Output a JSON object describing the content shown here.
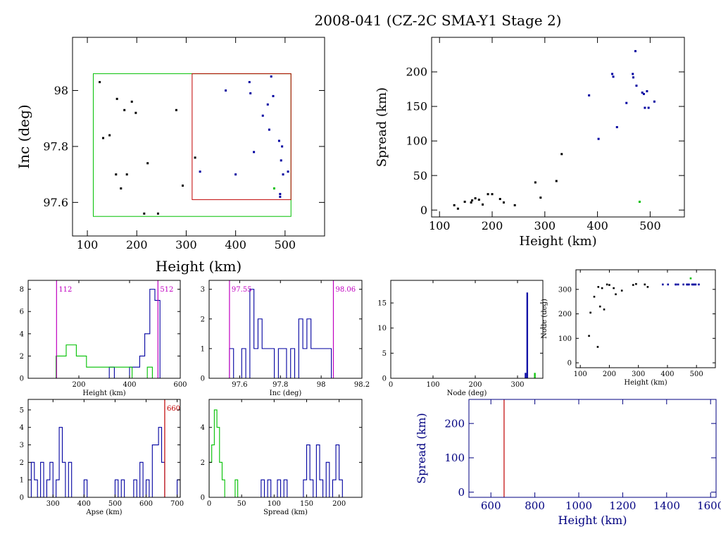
{
  "title": "2008-041 (CZ-2C SMA-Y1 Stage 2)",
  "colors": {
    "axis": "#000000",
    "blue": "#0000a0",
    "green": "#00c000",
    "red": "#c00000",
    "magenta": "#c000c0",
    "darkblue": "#000080"
  },
  "chart_data": [
    {
      "id": "inc_vs_height",
      "type": "scatter",
      "xlabel": "Height (km)",
      "ylabel": "Inc (deg)",
      "xlim": [
        70,
        580
      ],
      "ylim": [
        97.48,
        98.19
      ],
      "xticks": [
        100,
        200,
        300,
        400,
        500
      ],
      "yticks": [
        97.6,
        97.8,
        98.0
      ],
      "ytick_labels": [
        "97.6",
        "97.8",
        "98"
      ],
      "boxes": [
        {
          "color": "green",
          "x": [
            112,
            512
          ],
          "y": [
            97.55,
            98.06
          ]
        },
        {
          "color": "red",
          "x": [
            312,
            512
          ],
          "y": [
            97.61,
            98.06
          ]
        }
      ],
      "series": [
        {
          "color": "black",
          "points": [
            [
              125,
              98.03
            ],
            [
              132,
              97.83
            ],
            [
              145,
              97.84
            ],
            [
              158,
              97.7
            ],
            [
              160,
              97.97
            ],
            [
              168,
              97.65
            ],
            [
              175,
              97.93
            ],
            [
              180,
              97.7
            ],
            [
              190,
              97.96
            ],
            [
              198,
              97.92
            ],
            [
              215,
              97.56
            ],
            [
              222,
              97.74
            ],
            [
              243,
              97.56
            ],
            [
              280,
              97.93
            ],
            [
              293,
              97.66
            ],
            [
              318,
              97.76
            ]
          ]
        },
        {
          "color": "blue",
          "points": [
            [
              328,
              97.71
            ],
            [
              380,
              98.0
            ],
            [
              400,
              97.7
            ],
            [
              428,
              98.03
            ],
            [
              430,
              97.99
            ],
            [
              437,
              97.78
            ],
            [
              455,
              97.91
            ],
            [
              465,
              97.95
            ],
            [
              468,
              97.86
            ],
            [
              472,
              98.05
            ],
            [
              476,
              97.98
            ],
            [
              488,
              97.82
            ],
            [
              492,
              97.75
            ],
            [
              494,
              97.8
            ],
            [
              496,
              97.7
            ],
            [
              490,
              97.62
            ],
            [
              490,
              97.63
            ],
            [
              506,
              97.71
            ]
          ]
        },
        {
          "color": "green",
          "points": [
            [
              478,
              97.65
            ]
          ]
        }
      ]
    },
    {
      "id": "spread_vs_height",
      "type": "scatter",
      "xlabel": "Height (km)",
      "ylabel": "Spread (km)",
      "xlim": [
        85,
        565
      ],
      "ylim": [
        -10,
        250
      ],
      "xticks": [
        100,
        200,
        300,
        400,
        500
      ],
      "yticks": [
        0,
        50,
        100,
        150,
        200
      ],
      "series": [
        {
          "color": "black",
          "points": [
            [
              128,
              7
            ],
            [
              135,
              2
            ],
            [
              148,
              12
            ],
            [
              160,
              11
            ],
            [
              162,
              14
            ],
            [
              168,
              17
            ],
            [
              175,
              15
            ],
            [
              182,
              8
            ],
            [
              192,
              23
            ],
            [
              200,
              23
            ],
            [
              215,
              16
            ],
            [
              222,
              11
            ],
            [
              243,
              7
            ],
            [
              282,
              40
            ],
            [
              292,
              18
            ],
            [
              322,
              42
            ],
            [
              332,
              81
            ]
          ]
        },
        {
          "color": "blue",
          "points": [
            [
              384,
              166
            ],
            [
              402,
              103
            ],
            [
              428,
              197
            ],
            [
              430,
              193
            ],
            [
              437,
              120
            ],
            [
              455,
              155
            ],
            [
              467,
              197
            ],
            [
              468,
              192
            ],
            [
              472,
              230
            ],
            [
              474,
              180
            ],
            [
              485,
              170
            ],
            [
              488,
              168
            ],
            [
              490,
              148
            ],
            [
              494,
              172
            ],
            [
              497,
              148
            ],
            [
              508,
              157
            ]
          ]
        },
        {
          "color": "green",
          "points": [
            [
              480,
              12
            ]
          ]
        }
      ]
    },
    {
      "id": "height_hist",
      "type": "histogram",
      "xlabel": "Height (km)",
      "xlim": [
        0,
        600
      ],
      "ylim": [
        0,
        8.8
      ],
      "xticks": [
        200,
        400,
        600
      ],
      "yticks": [
        0,
        2,
        4,
        6,
        8
      ],
      "markers": [
        {
          "x": 112,
          "label": "112",
          "color": "magenta"
        },
        {
          "x": 512,
          "label": "512",
          "color": "magenta"
        }
      ],
      "series": [
        {
          "color": "blue",
          "edges": [
            320,
            340,
            360,
            380,
            400,
            420,
            440,
            460,
            480,
            500,
            520
          ],
          "counts": [
            1,
            0,
            0,
            0,
            1,
            1,
            2,
            4,
            8,
            7
          ]
        },
        {
          "color": "green",
          "edges": [
            110,
            130,
            150,
            170,
            190,
            210,
            230,
            250,
            270,
            290,
            310,
            330,
            350,
            370,
            390,
            410,
            430,
            450,
            470,
            490
          ],
          "counts": [
            2,
            2,
            3,
            3,
            2,
            2,
            1,
            1,
            1,
            1,
            1,
            1,
            1,
            1,
            1,
            0,
            0,
            0,
            1
          ]
        }
      ]
    },
    {
      "id": "inc_hist",
      "type": "histogram",
      "xlabel": "Inc (deg)",
      "xlim": [
        97.45,
        98.2
      ],
      "ylim": [
        0,
        3.3
      ],
      "xticks": [
        97.6,
        97.8,
        98.0,
        98.2
      ],
      "xtick_labels": [
        "97.6",
        "97.8",
        "98",
        "98.2"
      ],
      "yticks": [
        0,
        1,
        2,
        3
      ],
      "markers": [
        {
          "x": 97.55,
          "label": "97.55",
          "color": "magenta"
        },
        {
          "x": 98.06,
          "label": "98.06",
          "color": "magenta"
        }
      ],
      "series": [
        {
          "color": "blue",
          "edges": [
            97.55,
            97.57,
            97.59,
            97.61,
            97.63,
            97.65,
            97.67,
            97.69,
            97.71,
            97.73,
            97.75,
            97.77,
            97.79,
            97.81,
            97.83,
            97.85,
            97.87,
            97.89,
            97.91,
            97.93,
            97.95,
            97.97,
            97.99,
            98.01,
            98.03,
            98.05,
            98.07
          ],
          "counts": [
            1,
            0,
            0,
            1,
            0,
            3,
            1,
            2,
            1,
            1,
            1,
            0,
            1,
            1,
            0,
            1,
            0,
            2,
            1,
            2,
            1,
            1,
            1,
            1,
            1,
            0
          ]
        }
      ]
    },
    {
      "id": "node_hist",
      "type": "histogram",
      "xlabel": "Node (deg)",
      "xlim": [
        0,
        360
      ],
      "ylim": [
        0,
        19.5
      ],
      "xticks": [
        0,
        100,
        200,
        300
      ],
      "yticks": [
        0,
        5,
        10,
        15
      ],
      "series": [
        {
          "color": "blue",
          "edges": [
            318,
            320,
            322,
            324,
            326
          ],
          "counts": [
            1,
            0,
            17,
            0
          ]
        },
        {
          "color": "green",
          "edges": [
            340,
            342,
            344
          ],
          "counts": [
            1,
            0
          ]
        }
      ]
    },
    {
      "id": "node_vs_height",
      "type": "scatter",
      "xlabel": "Height (km)",
      "ylabel": "Node (deg)",
      "xlim": [
        85,
        565
      ],
      "ylim": [
        -20,
        380
      ],
      "xticks": [
        100,
        200,
        300,
        400,
        500
      ],
      "yticks": [
        0,
        100,
        200,
        300
      ],
      "series": [
        {
          "color": "black",
          "points": [
            [
              130,
              110
            ],
            [
              135,
              205
            ],
            [
              148,
              270
            ],
            [
              160,
              65
            ],
            [
              162,
              310
            ],
            [
              168,
              230
            ],
            [
              175,
              305
            ],
            [
              182,
              218
            ],
            [
              192,
              320
            ],
            [
              200,
              318
            ],
            [
              215,
              305
            ],
            [
              222,
              280
            ],
            [
              243,
              295
            ],
            [
              282,
              318
            ],
            [
              292,
              322
            ],
            [
              322,
              320
            ],
            [
              332,
              310
            ]
          ]
        },
        {
          "color": "blue",
          "points": [
            [
              384,
              320
            ],
            [
              402,
              320
            ],
            [
              428,
              320
            ],
            [
              430,
              320
            ],
            [
              437,
              320
            ],
            [
              455,
              320
            ],
            [
              467,
              320
            ],
            [
              468,
              320
            ],
            [
              472,
              320
            ],
            [
              474,
              320
            ],
            [
              485,
              320
            ],
            [
              488,
              320
            ],
            [
              490,
              320
            ],
            [
              494,
              320
            ],
            [
              497,
              320
            ],
            [
              508,
              320
            ]
          ]
        },
        {
          "color": "green",
          "points": [
            [
              480,
              345
            ]
          ]
        }
      ]
    },
    {
      "id": "apse_hist",
      "type": "histogram",
      "xlabel": "Apse (km)",
      "xlim": [
        220,
        710
      ],
      "ylim": [
        0,
        5.6
      ],
      "xticks": [
        300,
        400,
        500,
        600,
        700
      ],
      "yticks": [
        0,
        1,
        2,
        3,
        4,
        5
      ],
      "markers": [
        {
          "x": 660,
          "label": "660",
          "color": "red"
        }
      ],
      "series": [
        {
          "color": "blue",
          "edges": [
            230,
            240,
            250,
            260,
            270,
            280,
            290,
            300,
            310,
            320,
            330,
            340,
            350,
            360,
            370,
            380,
            390,
            400,
            410,
            420,
            430,
            440,
            450,
            460,
            470,
            480,
            490,
            500,
            510,
            520,
            530,
            540,
            550,
            560,
            570,
            580,
            590,
            600,
            610,
            620,
            630,
            640,
            650,
            660,
            670,
            680,
            690,
            700,
            710
          ],
          "counts": [
            2,
            1,
            0,
            2,
            0,
            1,
            2,
            0,
            1,
            4,
            2,
            0,
            2,
            0,
            0,
            0,
            0,
            1,
            0,
            0,
            0,
            0,
            0,
            0,
            0,
            0,
            0,
            1,
            0,
            1,
            0,
            0,
            0,
            1,
            0,
            2,
            0,
            1,
            0,
            3,
            3,
            4,
            2,
            0,
            0,
            0,
            0,
            1
          ]
        }
      ]
    },
    {
      "id": "spread_hist",
      "type": "histogram",
      "xlabel": "Spread (km)",
      "xlim": [
        0,
        235
      ],
      "ylim": [
        0,
        5.6
      ],
      "xticks": [
        0,
        50,
        100,
        150,
        200
      ],
      "yticks": [
        0,
        2,
        4
      ],
      "series": [
        {
          "color": "green",
          "edges": [
            0,
            4,
            8,
            12,
            16,
            20,
            24,
            28,
            32,
            36,
            40,
            44
          ],
          "counts": [
            2,
            3,
            5,
            4,
            2,
            1,
            0,
            0,
            0,
            0,
            1
          ]
        },
        {
          "color": "blue",
          "edges": [
            80,
            85,
            90,
            95,
            100,
            105,
            110,
            115,
            120,
            125,
            130,
            135,
            140,
            145,
            150,
            155,
            160,
            165,
            170,
            175,
            180,
            185,
            190,
            195,
            200,
            205
          ],
          "counts": [
            1,
            0,
            1,
            0,
            0,
            1,
            0,
            1,
            0,
            0,
            0,
            0,
            0,
            1,
            3,
            1,
            0,
            3,
            1,
            0,
            2,
            0,
            1,
            3,
            1
          ]
        }
      ]
    },
    {
      "id": "spread_vs_height_wide",
      "type": "scatter",
      "xlabel": "Height (km)",
      "ylabel": "Spread (km)",
      "xlim": [
        500,
        1625
      ],
      "ylim": [
        -15,
        270
      ],
      "xticks": [
        600,
        800,
        1000,
        1200,
        1400,
        1600
      ],
      "yticks": [
        0,
        100,
        200
      ],
      "markers": [
        {
          "x": 660,
          "color": "red"
        }
      ],
      "series": []
    }
  ]
}
